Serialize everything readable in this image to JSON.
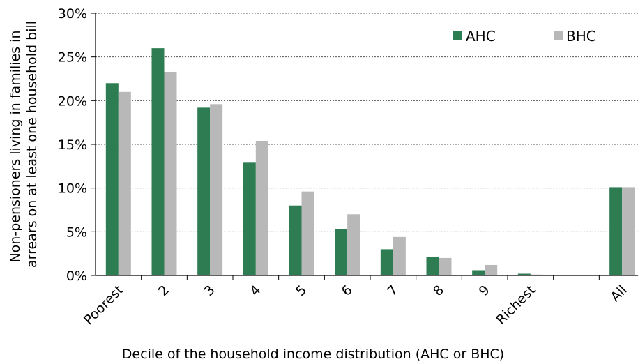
{
  "chart_data": {
    "type": "bar",
    "categories": [
      "Poorest",
      "2",
      "3",
      "4",
      "5",
      "6",
      "7",
      "8",
      "9",
      "Richest",
      "",
      "All"
    ],
    "series": [
      {
        "name": "AHC",
        "color": "#2e7d52",
        "values": [
          22.0,
          26.0,
          19.2,
          12.9,
          8.0,
          5.3,
          3.0,
          2.1,
          0.6,
          0.2,
          null,
          10.1
        ]
      },
      {
        "name": "BHC",
        "color": "#b8b8b8",
        "values": [
          21.0,
          23.3,
          19.6,
          15.4,
          9.6,
          7.0,
          4.4,
          2.0,
          1.2,
          0.1,
          null,
          10.1
        ]
      }
    ],
    "y_ticks": [
      "0%",
      "5%",
      "10%",
      "15%",
      "20%",
      "25%",
      "30%"
    ],
    "ylim": [
      0,
      30
    ],
    "ylabel_lines": [
      "Non-pensioners living in families in",
      "arrears on at least one household bill"
    ],
    "xlabel": "Decile of the household income distribution (AHC or BHC)",
    "grid": "horizontal dotted",
    "legend_position": "top-right"
  }
}
